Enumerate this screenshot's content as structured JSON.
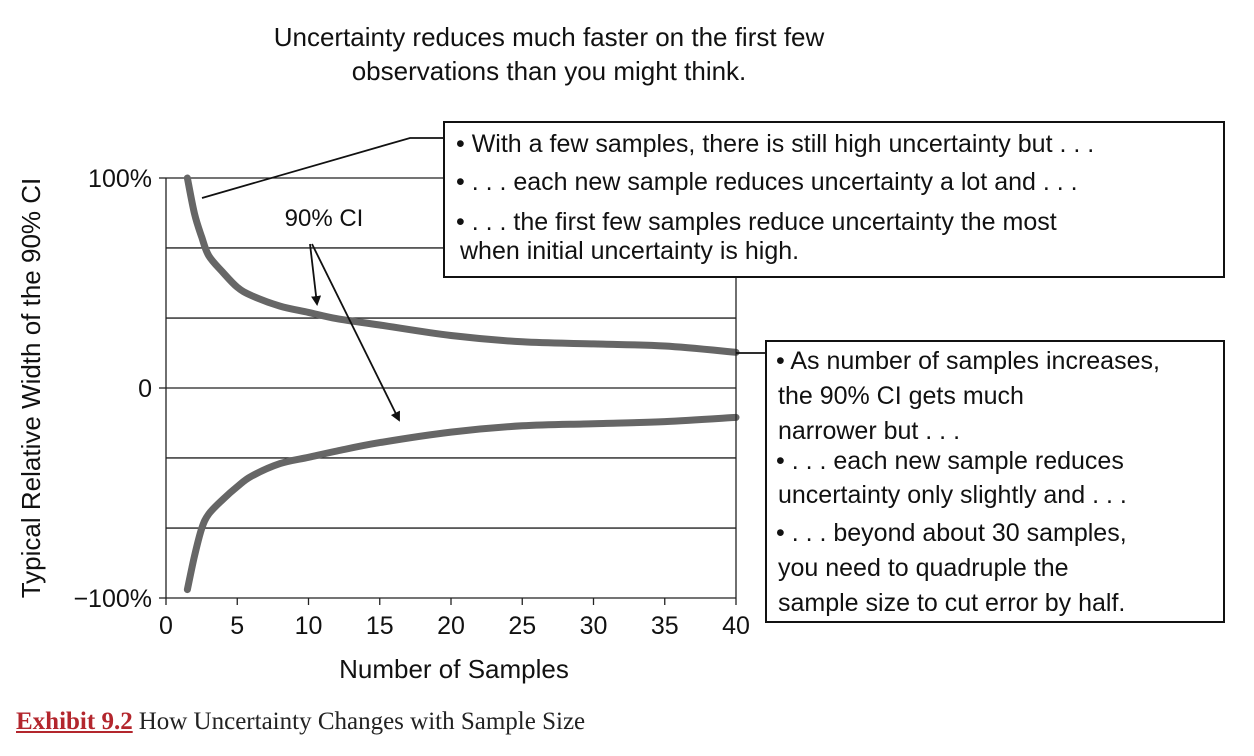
{
  "chart_data": {
    "type": "line",
    "title": "Uncertainty reduces much faster on the first few observations than you might think.",
    "title_lines": [
      "Uncertainty reduces much faster on the first few",
      "observations than you might think."
    ],
    "xlabel": "Number of Samples",
    "ylabel": "Typical Relative Width of the 90% CI",
    "xlim": [
      0,
      40
    ],
    "ylim": [
      -100,
      100
    ],
    "x_ticks": [
      "0",
      "5",
      "10",
      "15",
      "20",
      "25",
      "30",
      "35",
      "40"
    ],
    "y_ticks": [
      "100%",
      "0",
      "−100%"
    ],
    "grid": true,
    "series": [
      {
        "role": "upper bound",
        "x": [
          1.5,
          2,
          2.5,
          3,
          4,
          5,
          6,
          8,
          10,
          12,
          15,
          20,
          25,
          30,
          35,
          40
        ],
        "y": [
          100,
          83,
          72,
          63,
          55,
          48,
          44,
          39,
          36,
          33,
          30,
          25,
          22,
          21,
          20,
          17
        ]
      },
      {
        "role": "lower bound",
        "x": [
          1.5,
          2,
          2.5,
          3,
          4,
          5,
          6,
          8,
          10,
          12,
          15,
          20,
          25,
          30,
          35,
          40
        ],
        "y": [
          -96,
          -80,
          -67,
          -60,
          -53,
          -47,
          -42,
          -36,
          -33,
          -30,
          -26,
          -21,
          -18,
          -17,
          -16,
          -14
        ]
      }
    ],
    "annotations": {
      "ci_label": "90% CI",
      "box_top": [
        "• With a few samples, there is still high uncertainty but . . .",
        "•  . . . each new sample reduces uncertainty a lot and . . .",
        "•  . . . the first few samples reduce uncertainty the most",
        "when initial uncertainty is high."
      ],
      "box_right": [
        "• As number of samples increases,",
        "the 90% CI gets much",
        "narrower but . . .",
        "•  . . . each new sample reduces",
        "uncertainty only slightly and . . .",
        "•  . . . beyond about 30 samples,",
        "you need to quadruple the",
        "sample size to cut error by half."
      ]
    }
  },
  "caption": {
    "label": "Exhibit 9.2",
    "text": "How Uncertainty Changes with Sample Size"
  }
}
